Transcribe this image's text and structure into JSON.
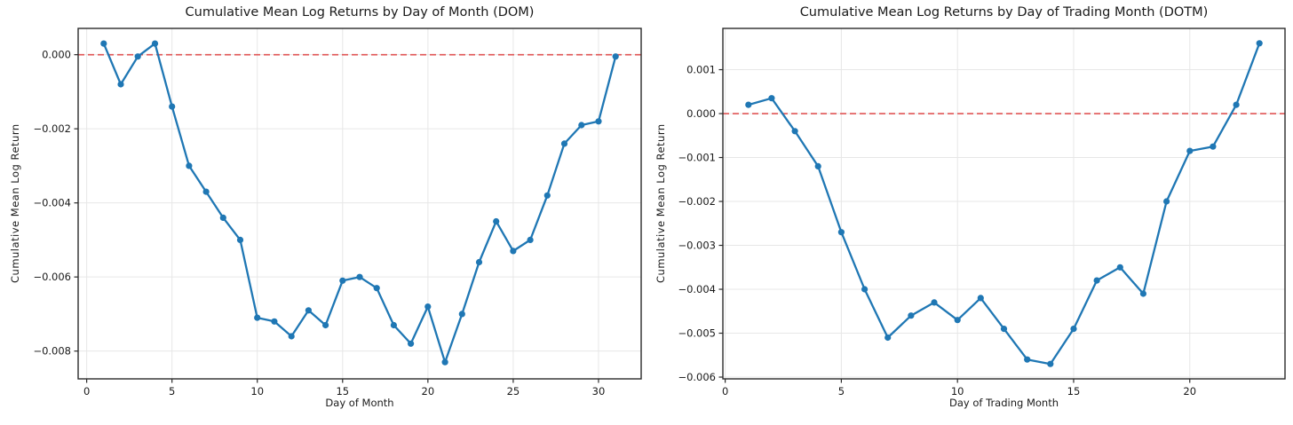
{
  "figure": {
    "background": "#ffffff"
  },
  "chart_data": [
    {
      "type": "line",
      "title": "Cumulative Mean Log Returns by Day of Month (DOM)",
      "xlabel": "Day of Month",
      "ylabel": "Cumulative Mean Log Return",
      "x": [
        1,
        2,
        3,
        4,
        5,
        6,
        7,
        8,
        9,
        10,
        11,
        12,
        13,
        14,
        15,
        16,
        17,
        18,
        19,
        20,
        21,
        22,
        23,
        24,
        25,
        26,
        27,
        28,
        29,
        30,
        31
      ],
      "y": [
        0.0003,
        -0.0008,
        -5e-05,
        0.0003,
        -0.0014,
        -0.003,
        -0.0037,
        -0.0044,
        -0.005,
        -0.0071,
        -0.0072,
        -0.0076,
        -0.0069,
        -0.0073,
        -0.0061,
        -0.006,
        -0.0063,
        -0.0073,
        -0.0078,
        -0.0068,
        -0.0083,
        -0.007,
        -0.0056,
        -0.0045,
        -0.0053,
        -0.005,
        -0.0038,
        -0.0024,
        -0.0019,
        -0.0018,
        -5e-05
      ],
      "xlim": [
        -0.5,
        32.5
      ],
      "ylim": [
        -0.00875,
        0.00071
      ],
      "xticks": [
        0,
        5,
        10,
        15,
        20,
        25,
        30
      ],
      "yticks": [
        {
          "value": 0.0,
          "label": "0.000"
        },
        {
          "value": -0.002,
          "label": "−0.002"
        },
        {
          "value": -0.004,
          "label": "−0.004"
        },
        {
          "value": -0.006,
          "label": "−0.006"
        },
        {
          "value": -0.008,
          "label": "−0.008"
        }
      ],
      "grid": true,
      "legend": null,
      "zero_line": {
        "y": 0,
        "style": "dashed",
        "color": "#e05555"
      },
      "line_color": "#1f77b4",
      "marker_color": "#1f77b4",
      "grid_color": "#e7e7e7",
      "spine_color": "#2b2b2b",
      "text_color": "#1a1a1a"
    },
    {
      "type": "line",
      "title": "Cumulative Mean Log Returns by Day of Trading Month (DOTM)",
      "xlabel": "Day of Trading Month",
      "ylabel": "Cumulative Mean Log Return",
      "x": [
        1,
        2,
        3,
        4,
        5,
        6,
        7,
        8,
        9,
        10,
        11,
        12,
        13,
        14,
        15,
        16,
        17,
        18,
        19,
        20,
        21,
        22,
        23
      ],
      "y": [
        0.0002,
        0.00035,
        -0.0004,
        -0.0012,
        -0.0027,
        -0.004,
        -0.0051,
        -0.0046,
        -0.0043,
        -0.0047,
        -0.0042,
        -0.0049,
        -0.0056,
        -0.0057,
        -0.0049,
        -0.0038,
        -0.0035,
        -0.0041,
        -0.002,
        -0.00085,
        -0.00075,
        0.0002,
        0.0016
      ],
      "xlim": [
        -0.1,
        24.1
      ],
      "ylim": [
        -0.00604,
        0.00194
      ],
      "xticks": [
        0,
        5,
        10,
        15,
        20
      ],
      "yticks": [
        {
          "value": 0.001,
          "label": "0.001"
        },
        {
          "value": 0.0,
          "label": "0.000"
        },
        {
          "value": -0.001,
          "label": "−0.001"
        },
        {
          "value": -0.002,
          "label": "−0.002"
        },
        {
          "value": -0.003,
          "label": "−0.003"
        },
        {
          "value": -0.004,
          "label": "−0.004"
        },
        {
          "value": -0.005,
          "label": "−0.005"
        },
        {
          "value": -0.006,
          "label": "−0.006"
        }
      ],
      "grid": true,
      "legend": null,
      "zero_line": {
        "y": 0,
        "style": "dashed",
        "color": "#e05555"
      },
      "line_color": "#1f77b4",
      "marker_color": "#1f77b4",
      "grid_color": "#e7e7e7",
      "spine_color": "#2b2b2b",
      "text_color": "#1a1a1a"
    }
  ]
}
